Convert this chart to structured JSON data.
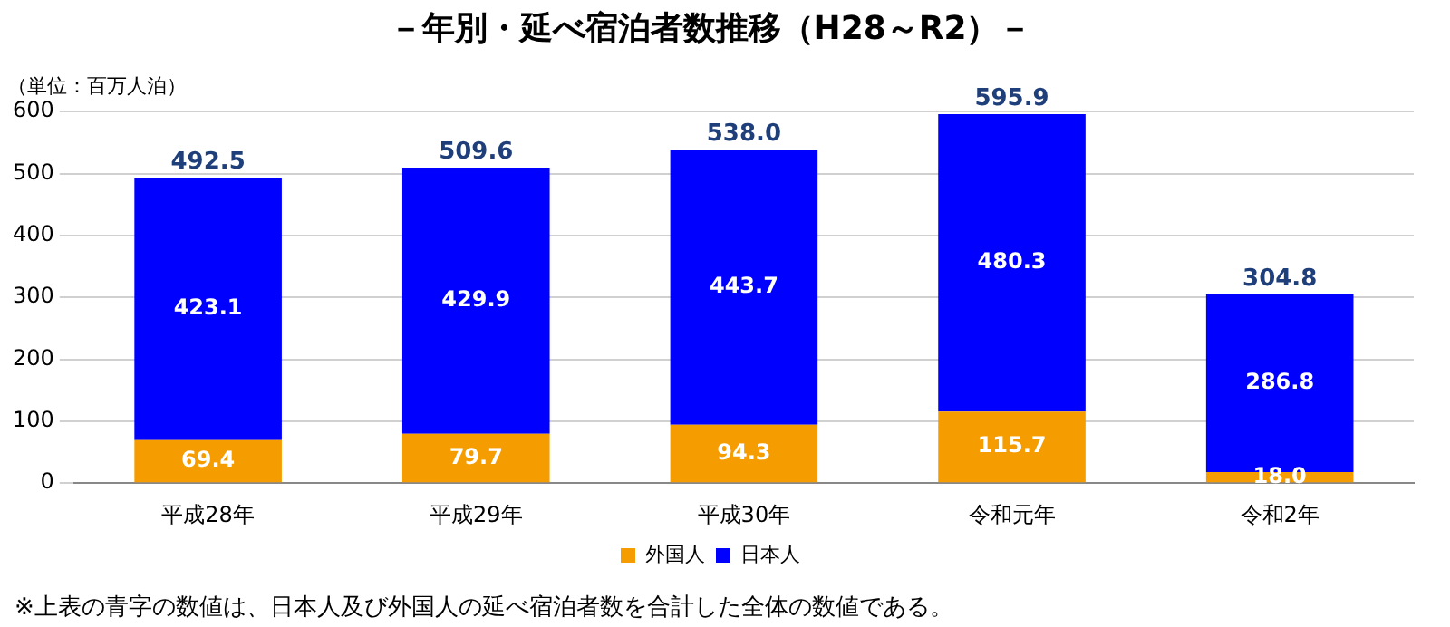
{
  "chart_data": {
    "type": "bar",
    "title": "－年別・延べ宿泊者数推移（H28～R2）－",
    "ylabel": "（単位：百万人泊）",
    "categories": [
      "平成28年",
      "平成29年",
      "平成30年",
      "令和元年",
      "令和2年"
    ],
    "stacked": true,
    "series": [
      {
        "name": "外国人",
        "color": "#f59d00",
        "values": [
          69.4,
          79.7,
          94.3,
          115.7,
          18.0
        ],
        "value_labels": [
          "69.4",
          "79.7",
          "94.3",
          "115.7",
          "18.0"
        ]
      },
      {
        "name": "日本人",
        "color": "#0000ff",
        "values": [
          423.1,
          429.9,
          443.7,
          480.3,
          286.8
        ],
        "value_labels": [
          "423.1",
          "429.9",
          "443.7",
          "480.3",
          "286.8"
        ]
      }
    ],
    "totals": [
      "492.5",
      "509.6",
      "538.0",
      "595.9",
      "304.8"
    ],
    "ylim": [
      0,
      600
    ],
    "yticks": [
      0,
      100,
      200,
      300,
      400,
      500,
      600
    ],
    "grid": "y",
    "legend": "bottom",
    "annotations": [
      "※上表の青字の数値は、日本人及び外国人の延べ宿泊者数を合計した全体の数値である。"
    ]
  }
}
